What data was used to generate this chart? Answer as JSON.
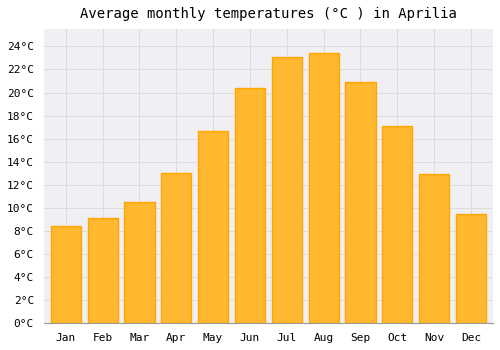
{
  "title": "Average monthly temperatures (°C ) in Aprilia",
  "months": [
    "Jan",
    "Feb",
    "Mar",
    "Apr",
    "May",
    "Jun",
    "Jul",
    "Aug",
    "Sep",
    "Oct",
    "Nov",
    "Dec"
  ],
  "values": [
    8.4,
    9.1,
    10.5,
    13.0,
    16.7,
    20.4,
    23.1,
    23.4,
    20.9,
    17.1,
    12.9,
    9.5
  ],
  "bar_color": "#FFA500",
  "bar_face_color": "#FFB830",
  "background_color": "#FFFFFF",
  "plot_bg_color": "#F0F0F4",
  "grid_color": "#DCDCE0",
  "yticks": [
    0,
    2,
    4,
    6,
    8,
    10,
    12,
    14,
    16,
    18,
    20,
    22,
    24
  ],
  "ylim": [
    0,
    25.5
  ],
  "title_fontsize": 10,
  "tick_fontsize": 8,
  "font_family": "monospace"
}
